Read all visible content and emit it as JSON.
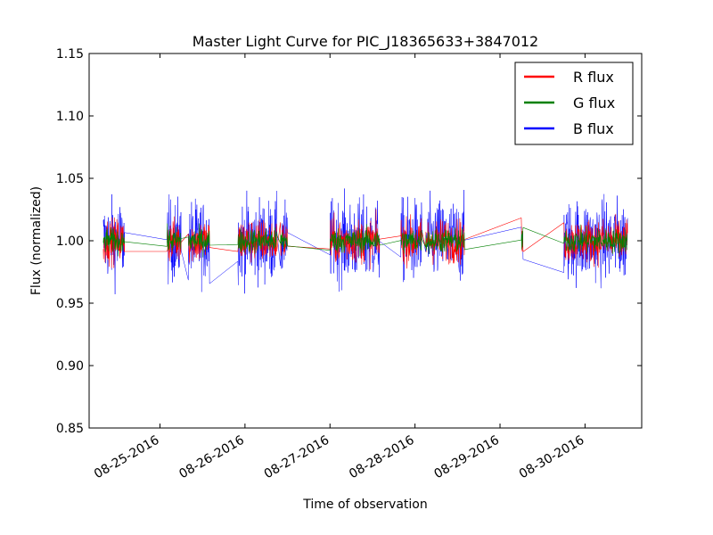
{
  "chart_data": {
    "type": "line",
    "title": "Master Light Curve for PIC_J18365633+3847012",
    "xlabel": "Time of observation",
    "ylabel": "Flux (normalized)",
    "ylim": [
      0.85,
      1.15
    ],
    "xlim": [
      "2016-08-24 04:00",
      "2016-08-30 16:00"
    ],
    "y_ticks": [
      "0.85",
      "0.90",
      "0.95",
      "1.00",
      "1.05",
      "1.10",
      "1.15"
    ],
    "x_ticks": [
      "08-25-2016",
      "08-26-2016",
      "08-27-2016",
      "08-28-2016",
      "08-29-2016",
      "08-30-2016"
    ],
    "grid": false,
    "legend_position": "top-right",
    "observation_windows": [
      [
        "2016-08-24 08:00",
        "2016-08-24 14:00"
      ],
      [
        "2016-08-25 02:00",
        "2016-08-25 06:00"
      ],
      [
        "2016-08-25 08:00",
        "2016-08-25 14:00"
      ],
      [
        "2016-08-25 22:00",
        "2016-08-26 04:00"
      ],
      [
        "2016-08-26 04:00",
        "2016-08-26 09:00"
      ],
      [
        "2016-08-26 10:00",
        "2016-08-26 12:00"
      ],
      [
        "2016-08-27 00:00",
        "2016-08-27 14:00"
      ],
      [
        "2016-08-27 20:00",
        "2016-08-28 02:00"
      ],
      [
        "2016-08-28 03:00",
        "2016-08-28 14:00"
      ],
      [
        "2016-08-29 06:00",
        "2016-08-29 06:30"
      ],
      [
        "2016-08-29 18:00",
        "2016-08-30 12:00"
      ]
    ],
    "series": [
      {
        "name": "R flux",
        "color": "#ff0000",
        "mean": 1.0,
        "scatter": 0.016
      },
      {
        "name": "G flux",
        "color": "#008000",
        "mean": 1.0,
        "scatter": 0.009
      },
      {
        "name": "B flux",
        "color": "#0000ff",
        "mean": 1.0,
        "scatter": 0.03
      }
    ]
  }
}
